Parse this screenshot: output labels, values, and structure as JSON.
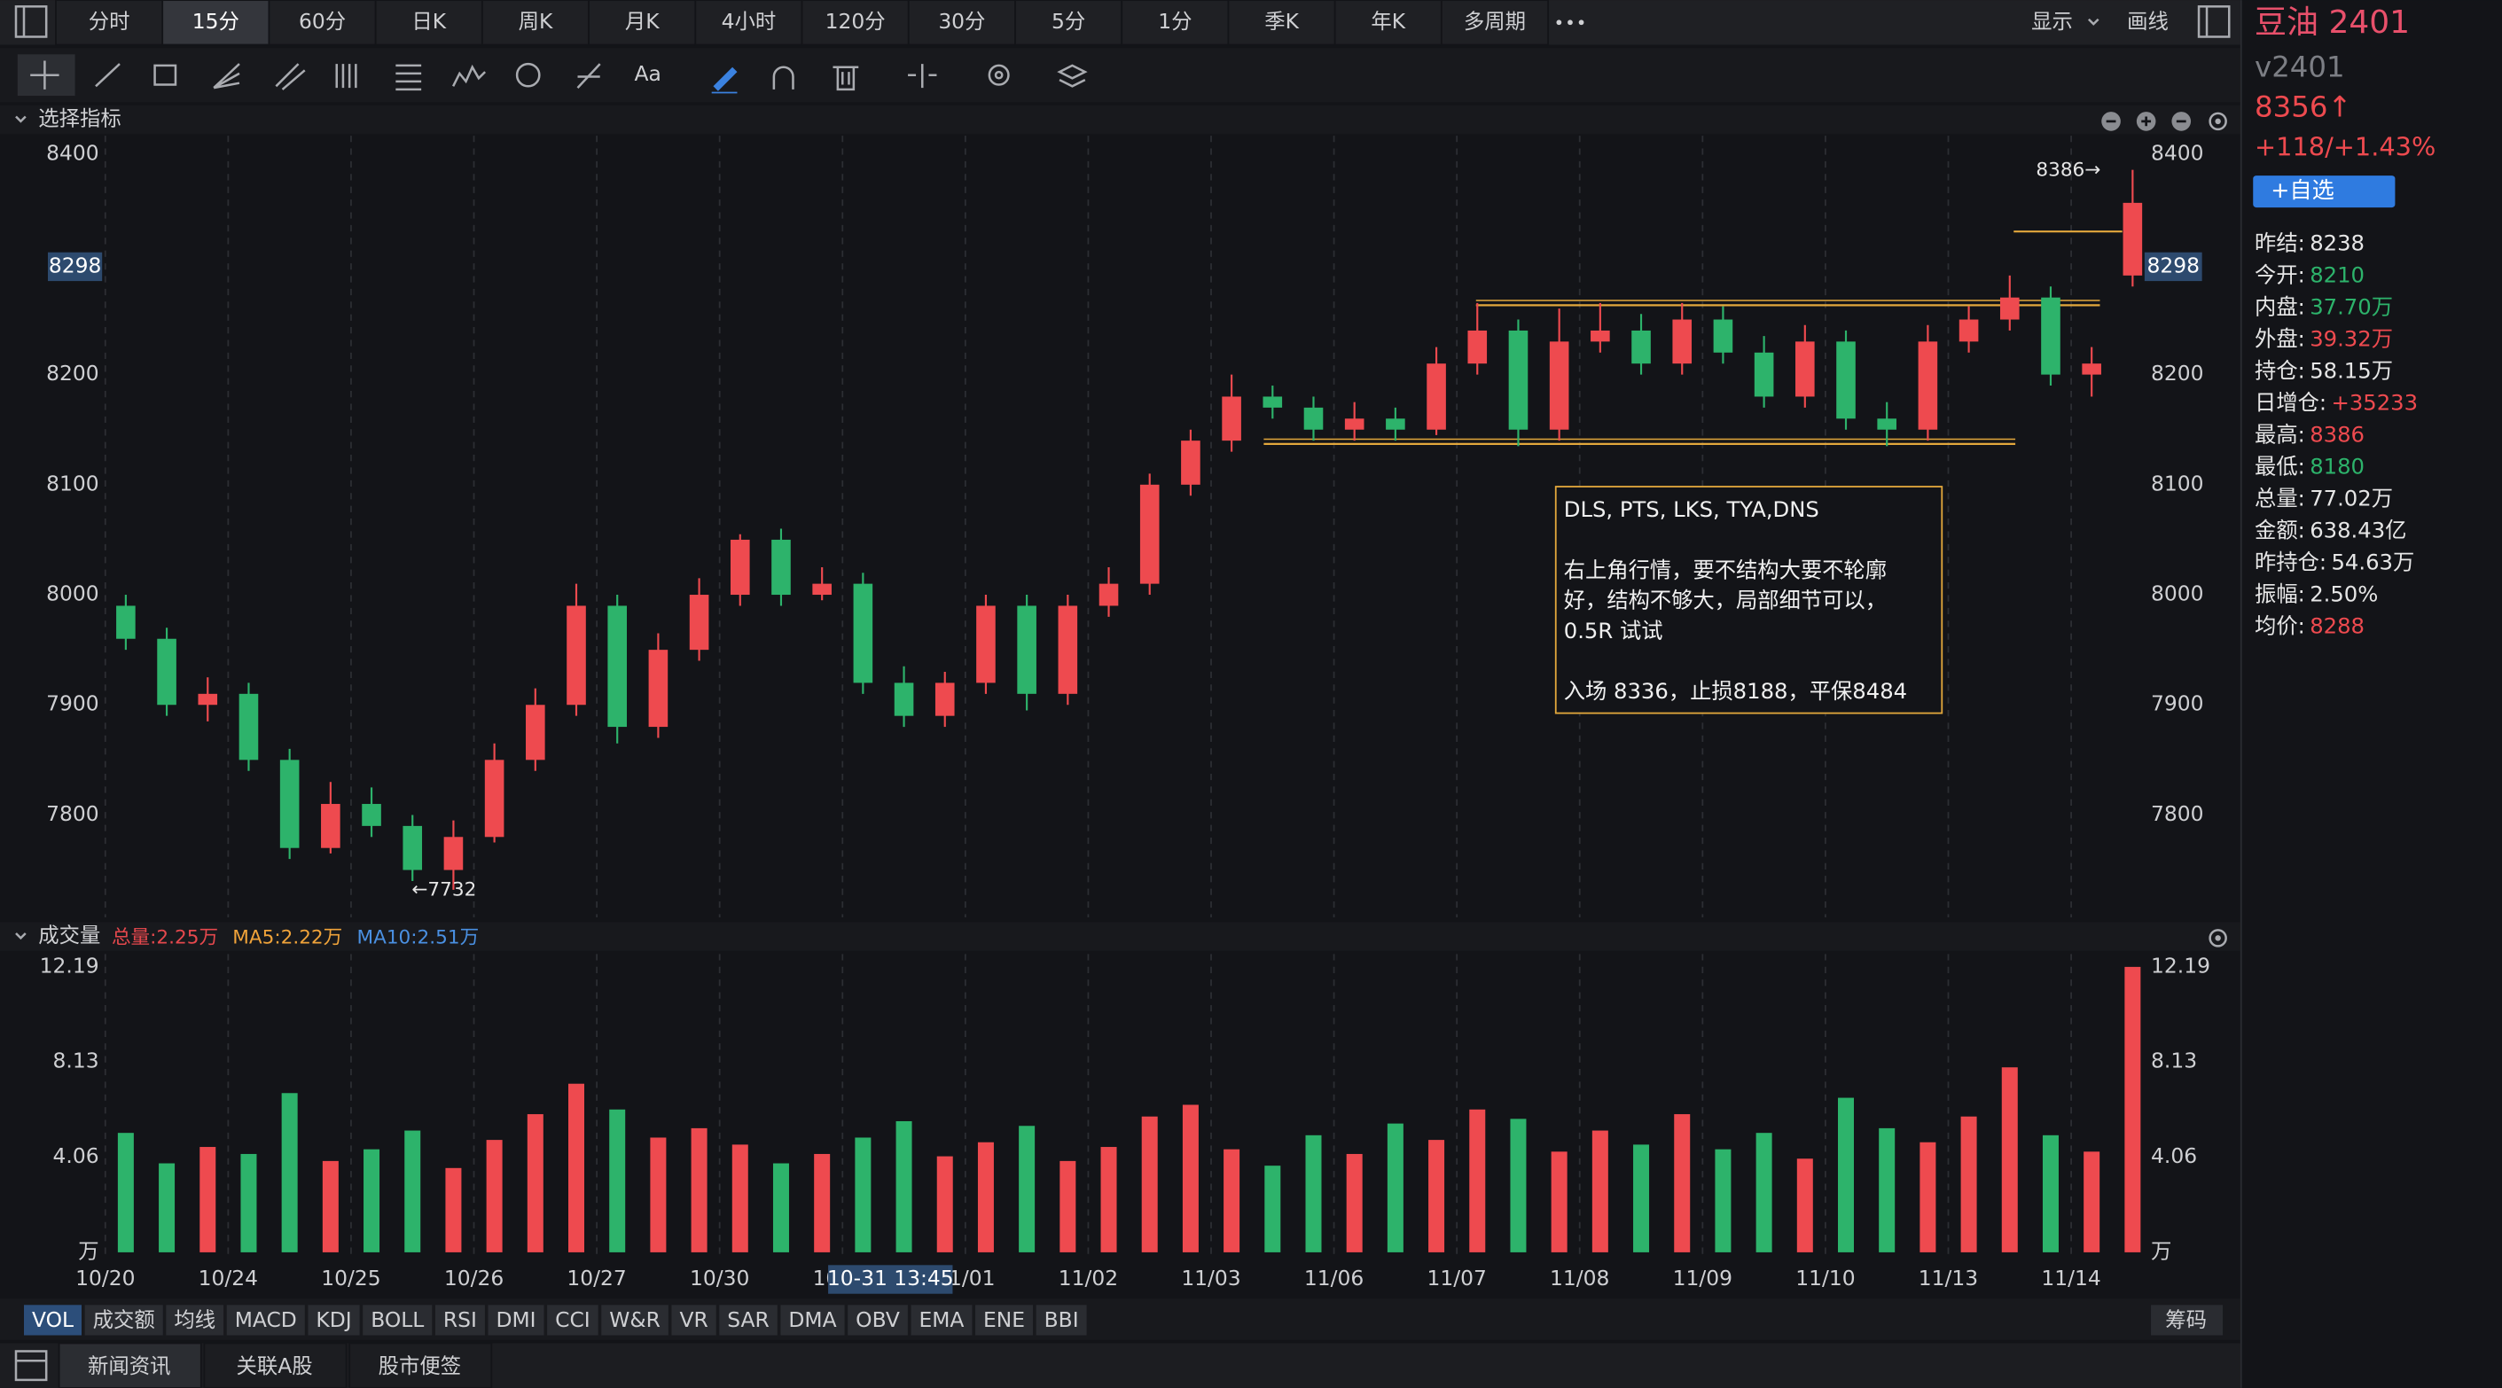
{
  "toolbar": {
    "periods": [
      "分时",
      "15分",
      "60分",
      "日K",
      "周K",
      "月K",
      "4小时",
      "120分",
      "30分",
      "5分",
      "1分",
      "季K",
      "年K",
      "多周期"
    ],
    "selected": 1,
    "display": "显示",
    "draw": "画线"
  },
  "tools": {
    "text_tool": "Aa"
  },
  "chart_data": {
    "type": "candlestick",
    "panel_title": "选择指标",
    "categories": [
      "10/20",
      null,
      null,
      "10/24",
      null,
      null,
      "10/25",
      null,
      null,
      "10/26",
      null,
      null,
      "10/27",
      null,
      null,
      "10/30",
      null,
      null,
      "10/31",
      null,
      null,
      "11/01",
      null,
      null,
      "11/02",
      null,
      null,
      "11/03",
      null,
      null,
      "11/06",
      null,
      null,
      "11/07",
      null,
      null,
      "11/08",
      null,
      null,
      "11/09",
      null,
      null,
      "11/10",
      null,
      null,
      "11/13",
      null,
      null,
      "11/14",
      null
    ],
    "open": [
      7990,
      7960,
      7900,
      7910,
      7850,
      7770,
      7810,
      7790,
      7750,
      7780,
      7850,
      7900,
      7990,
      7880,
      7950,
      8000,
      8050,
      8000,
      8010,
      7920,
      7890,
      7920,
      7990,
      7910,
      7990,
      8010,
      8100,
      8140,
      8180,
      8170,
      8150,
      8160,
      8150,
      8210,
      8240,
      8150,
      8230,
      8240,
      8210,
      8250,
      8220,
      8180,
      8230,
      8160,
      8150,
      8230,
      8250,
      8270,
      8200,
      8290
    ],
    "close": [
      7960,
      7900,
      7910,
      7850,
      7770,
      7810,
      7790,
      7750,
      7780,
      7850,
      7900,
      7990,
      7880,
      7950,
      8000,
      8050,
      8000,
      8010,
      7920,
      7890,
      7920,
      7990,
      7910,
      7990,
      8010,
      8100,
      8140,
      8180,
      8170,
      8150,
      8160,
      8150,
      8210,
      8240,
      8150,
      8230,
      8240,
      8210,
      8250,
      8220,
      8180,
      8230,
      8160,
      8150,
      8230,
      8250,
      8270,
      8200,
      8210,
      8356
    ],
    "high": [
      8000,
      7970,
      7925,
      7920,
      7860,
      7830,
      7825,
      7800,
      7795,
      7865,
      7915,
      8010,
      8000,
      7965,
      8015,
      8055,
      8060,
      8025,
      8020,
      7935,
      7930,
      8000,
      8000,
      8000,
      8025,
      8110,
      8150,
      8200,
      8190,
      8180,
      8175,
      8170,
      8225,
      8265,
      8250,
      8260,
      8265,
      8255,
      8265,
      8262,
      8235,
      8245,
      8240,
      8175,
      8245,
      8262,
      8290,
      8280,
      8225,
      8386
    ],
    "low": [
      7950,
      7890,
      7885,
      7840,
      7760,
      7765,
      7780,
      7740,
      7732,
      7775,
      7840,
      7890,
      7865,
      7870,
      7940,
      7990,
      7990,
      7995,
      7910,
      7880,
      7880,
      7910,
      7895,
      7900,
      7980,
      8000,
      8090,
      8130,
      8160,
      8140,
      8140,
      8140,
      8145,
      8200,
      8135,
      8140,
      8220,
      8200,
      8200,
      8210,
      8170,
      8170,
      8150,
      8135,
      8140,
      8220,
      8240,
      8190,
      8180,
      8280
    ],
    "up_color": "#ee4a4f",
    "down_color": "#2db36b",
    "ylim": [
      7707,
      8417
    ],
    "yticks": [
      7800,
      7900,
      8000,
      8100,
      8200,
      8400
    ],
    "marker_value": 8298,
    "levels": [
      8263,
      8137,
      8330
    ],
    "level_color": "#e3a83c",
    "annotations": {
      "high": "8386→",
      "low": "←7732"
    },
    "note": [
      "DLS, PTS, LKS, TYA,DNS",
      "右上角行情，要不结构大要不轮廓",
      "好，结构不够大，局部细节可以，",
      "0.5R 试试",
      "入场 8336，止损8188，平保8484"
    ],
    "crosshair_label": "10-31 13:45",
    "volume": {
      "title": "成交量",
      "legend": [
        {
          "text": "总量:2.25万",
          "color": "#e5484d"
        },
        {
          "text": "MA5:2.22万",
          "color": "#f0a33a"
        },
        {
          "text": "MA10:2.51万",
          "color": "#4a90e2"
        }
      ],
      "values": [
        5.1,
        3.8,
        4.5,
        4.2,
        6.8,
        3.9,
        4.4,
        5.2,
        3.6,
        4.8,
        5.9,
        7.2,
        6.1,
        4.9,
        5.3,
        4.6,
        3.8,
        4.2,
        4.9,
        5.6,
        4.1,
        4.7,
        5.4,
        3.9,
        4.5,
        5.8,
        6.3,
        4.4,
        3.7,
        5.0,
        4.2,
        5.5,
        4.8,
        6.1,
        5.7,
        4.3,
        5.2,
        4.6,
        5.9,
        4.4,
        5.1,
        4.0,
        6.6,
        5.3,
        4.7,
        5.8,
        7.9,
        5.0,
        4.3,
        12.19
      ],
      "ylim": [
        0,
        12.74
      ],
      "yticks": [
        {
          "value": 0,
          "label": "万"
        },
        4.06,
        8.13,
        12.19
      ]
    }
  },
  "indicator_tabs": [
    "VOL",
    "成交额",
    "均线",
    "MACD",
    "KDJ",
    "BOLL",
    "RSI",
    "DMI",
    "CCI",
    "W&R",
    "VR",
    "SAR",
    "DMA",
    "OBV",
    "EMA",
    "ENE",
    "BBI"
  ],
  "selected_indicator": 0,
  "chips": "筹码",
  "bottom_tabs": [
    "新闻资讯",
    "关联A股",
    "股市便签"
  ],
  "selected_bottom_tab": 0,
  "quote": {
    "name": "豆油 2401",
    "code": "v2401",
    "price": "8356↑",
    "change": "+118/+1.43%",
    "watch_button": "+自选",
    "stats": [
      {
        "label": "昨结:",
        "value": "8238",
        "color": "#e6e6e6"
      },
      {
        "label": "今开:",
        "value": "8210",
        "color": "#2db36b"
      },
      {
        "label": "内盘:",
        "value": "37.70万",
        "color": "#2db36b"
      },
      {
        "label": "外盘:",
        "value": "39.32万",
        "color": "#ee4a4f"
      },
      {
        "label": "持仓:",
        "value": "58.15万",
        "color": "#e6e6e6"
      },
      {
        "label": "日增仓:",
        "value": "+35233",
        "color": "#ee4a4f"
      },
      {
        "label": "最高:",
        "value": "8386",
        "color": "#ee4a4f"
      },
      {
        "label": "最低:",
        "value": "8180",
        "color": "#2db36b"
      },
      {
        "label": "总量:",
        "value": "77.02万",
        "color": "#e6e6e6"
      },
      {
        "label": "金额:",
        "value": "638.43亿",
        "color": "#e6e6e6"
      },
      {
        "label": "昨持仓:",
        "value": "54.63万",
        "color": "#e6e6e6"
      },
      {
        "label": "振幅:",
        "value": "2.50%",
        "color": "#e6e6e6"
      },
      {
        "label": "均价:",
        "value": "8288",
        "color": "#ee4a4f"
      }
    ]
  }
}
